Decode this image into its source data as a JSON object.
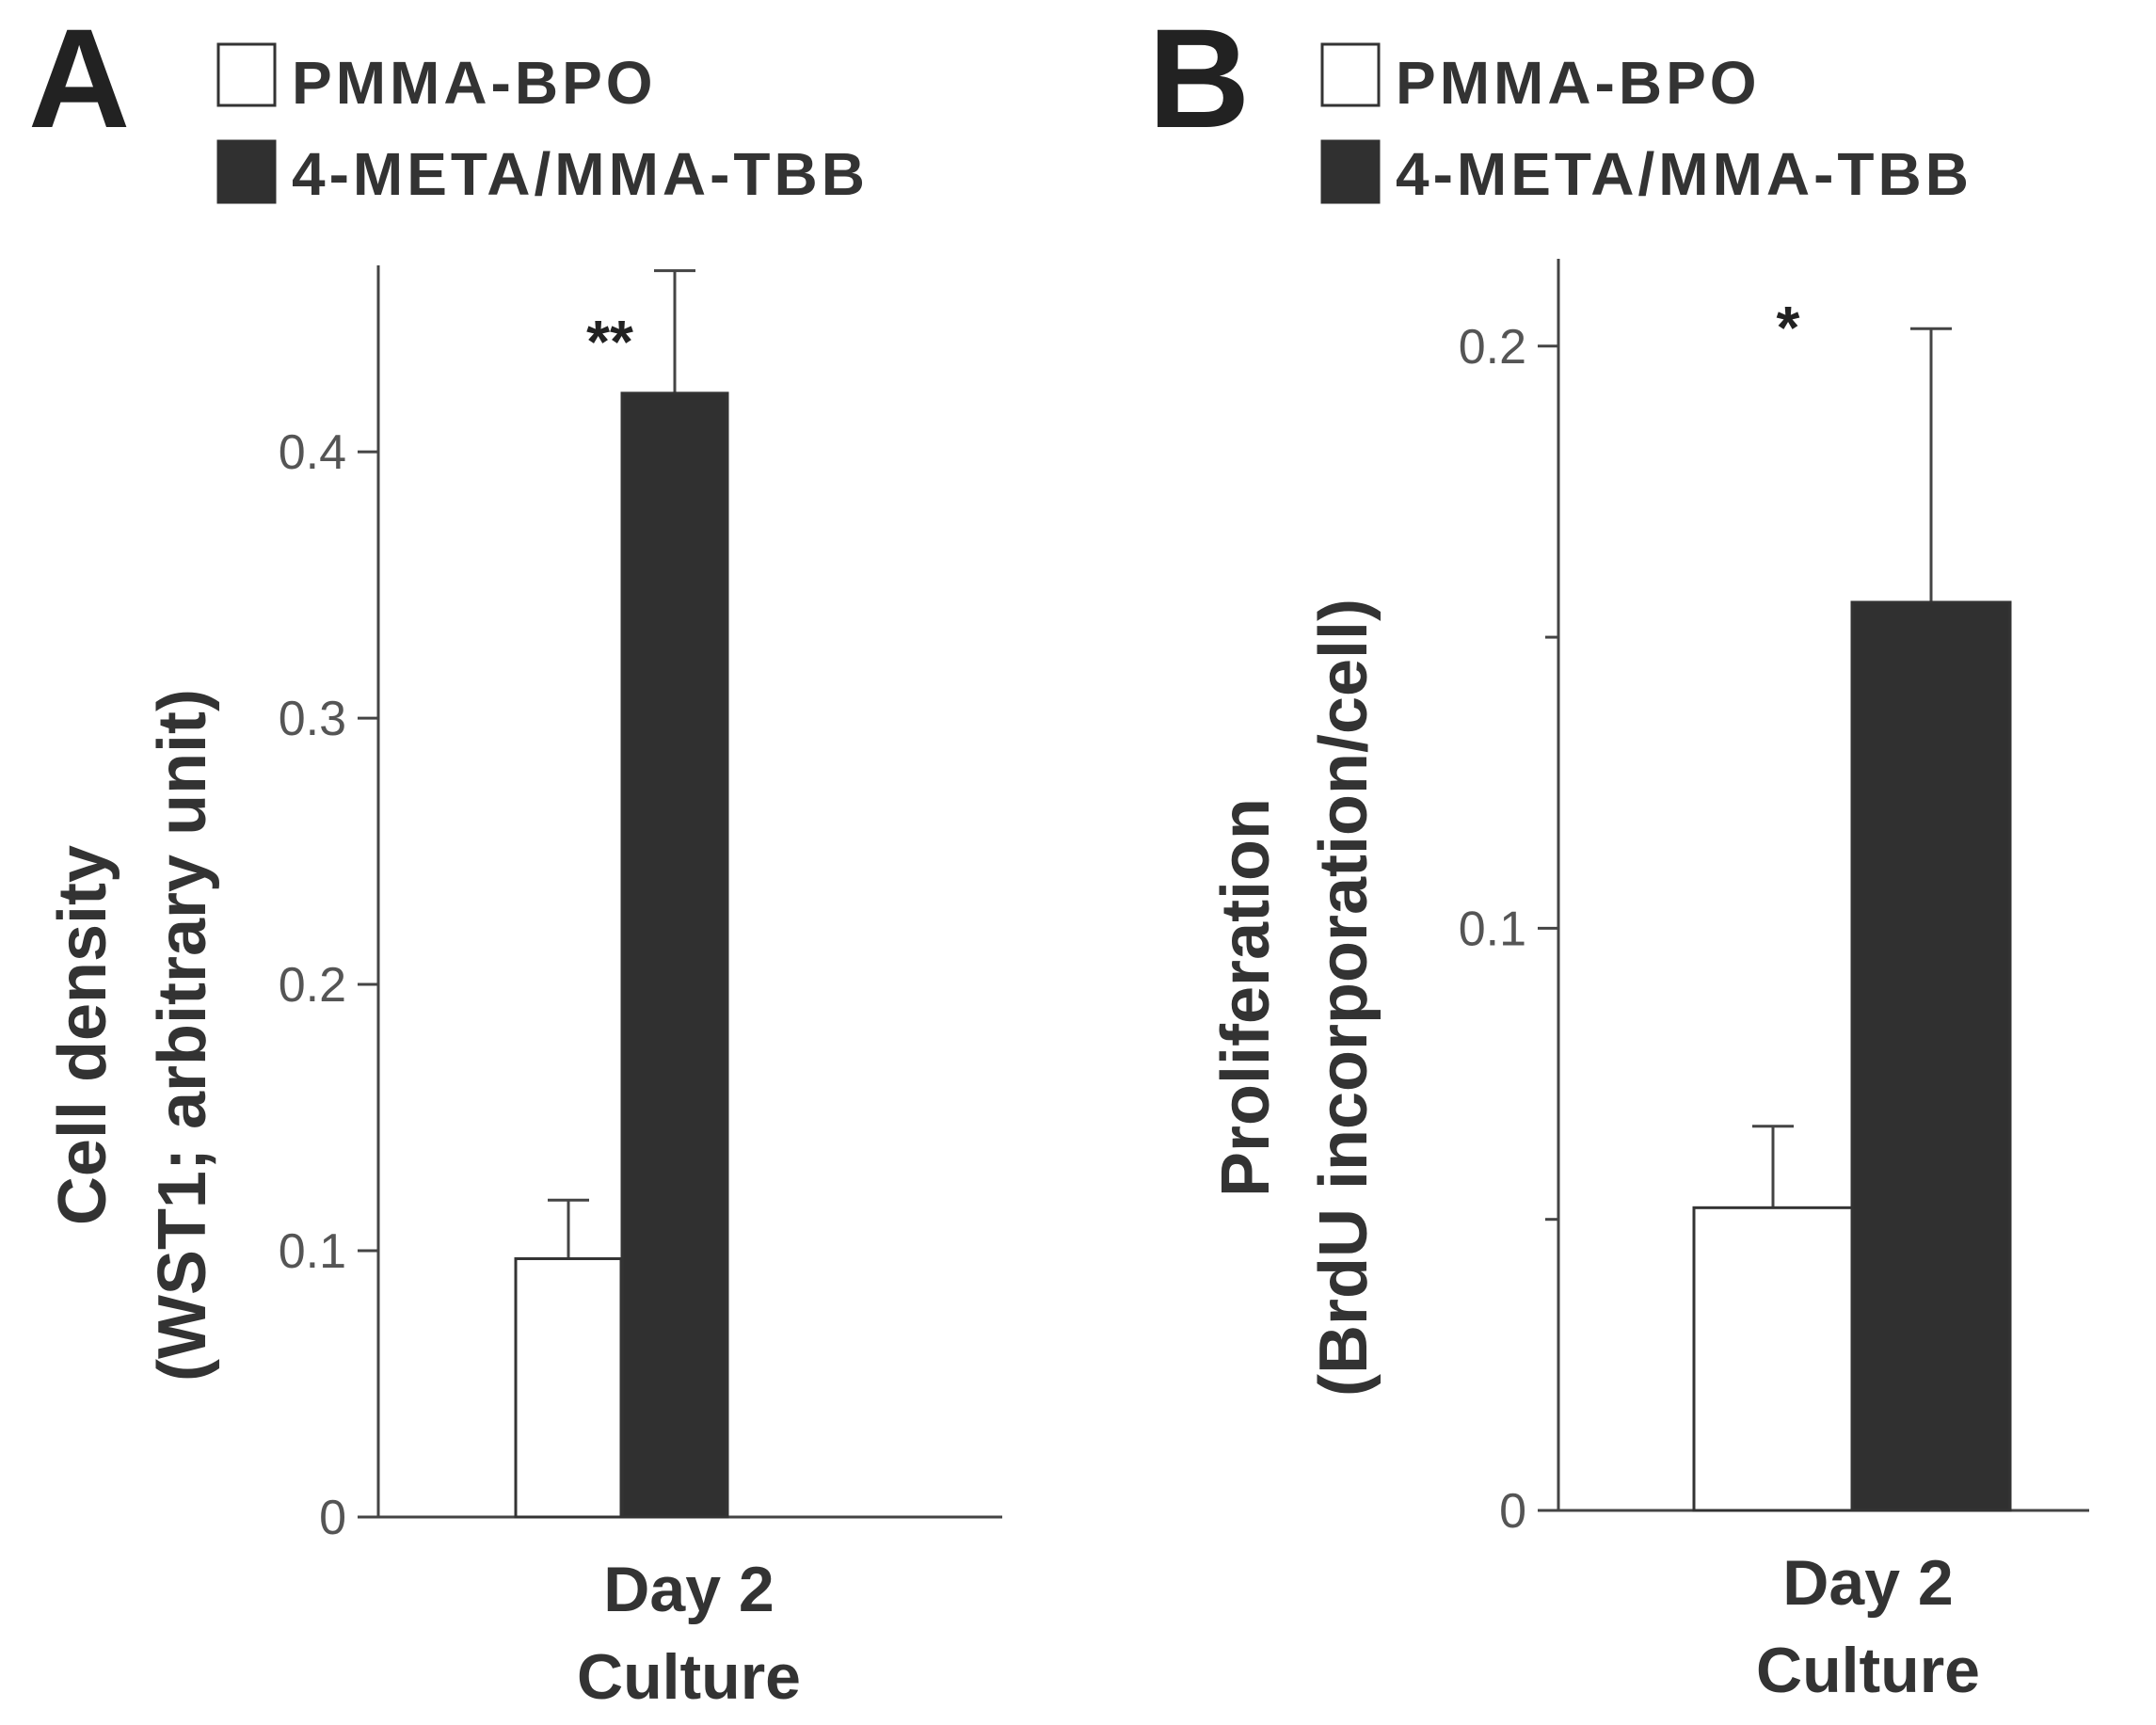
{
  "chart_data": [
    {
      "type": "bar",
      "panel": "A",
      "title": "",
      "xlabel": "Culture",
      "ylabel_line1": "Cell density",
      "ylabel_line2": "(WST1; arbitrary unit)",
      "categories": [
        "Day 2"
      ],
      "series": [
        {
          "name": "PMMA-BPO",
          "values": [
            0.097
          ],
          "errors": [
            0.022
          ],
          "color": "#ffffff"
        },
        {
          "name": "4-META/MMA-TBB",
          "values": [
            0.422
          ],
          "errors": [
            0.046
          ],
          "color": "#303030"
        }
      ],
      "ylim": [
        0,
        0.47
      ],
      "yticks": [
        0,
        0.1,
        0.2,
        0.3,
        0.4
      ],
      "ytick_labels": [
        "0",
        "0.1",
        "0.2",
        "0.3",
        "0.4"
      ],
      "minor_ticks": [],
      "significance": "**",
      "legend_position": "top"
    },
    {
      "type": "bar",
      "panel": "B",
      "title": "",
      "xlabel": "Culture",
      "ylabel_line1": "Proliferation",
      "ylabel_line2": "(BrdU incorporation/cell)",
      "categories": [
        "Day 2"
      ],
      "series": [
        {
          "name": "PMMA-BPO",
          "values": [
            0.052
          ],
          "errors": [
            0.014
          ],
          "color": "#ffffff"
        },
        {
          "name": "4-META/MMA-TBB",
          "values": [
            0.156
          ],
          "errors": [
            0.047
          ],
          "color": "#303030"
        }
      ],
      "ylim": [
        0,
        0.215
      ],
      "yticks": [
        0,
        0.1,
        0.2
      ],
      "ytick_labels": [
        "0",
        "0.1",
        "0.2"
      ],
      "minor_ticks": [
        0.05,
        0.15
      ],
      "significance": "*",
      "legend_position": "top"
    }
  ],
  "colors": {
    "ink": "#222222",
    "bar_dark": "#303030",
    "bar_light": "#ffffff"
  }
}
